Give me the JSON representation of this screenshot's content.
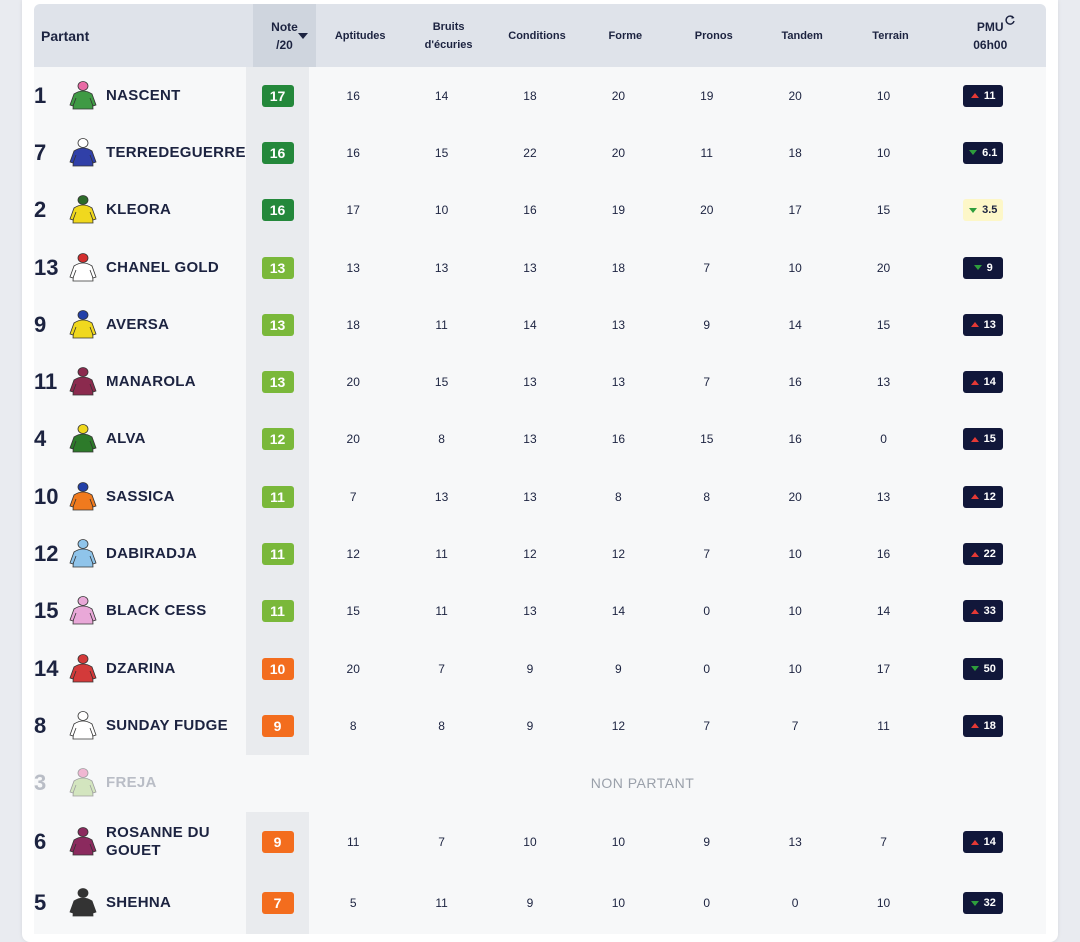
{
  "header": {
    "partant": "Partant",
    "note_line1": "Note",
    "note_line2": "/20",
    "aptitudes": "Aptitudes",
    "bruits_line1": "Bruits",
    "bruits_line2": "d'écuries",
    "conditions": "Conditions",
    "forme": "Forme",
    "pronos": "Pronos",
    "tandem": "Tandem",
    "terrain": "Terrain",
    "pmu_line1": "PMU",
    "pmu_line2": "06h00"
  },
  "colors": {
    "note_dark_green": "#24883b",
    "note_light_green": "#7ab83a",
    "note_orange": "#f36d1e",
    "odds_dark": "#11173a",
    "odds_light": "#fdf7c8"
  },
  "rows": [
    {
      "num": "1",
      "name": "NASCENT",
      "note": "17",
      "note_color": "#24883b",
      "aptitudes": "16",
      "bruits": "14",
      "conditions": "18",
      "forme": "20",
      "pronos": "19",
      "tandem": "20",
      "terrain": "10",
      "pmu": "11",
      "trend": "up",
      "jacket": "#3f9a44",
      "cap": "#e86aa5"
    },
    {
      "num": "7",
      "name": "TERREDEGUERRE",
      "note": "16",
      "note_color": "#24883b",
      "aptitudes": "16",
      "bruits": "15",
      "conditions": "22",
      "forme": "20",
      "pronos": "11",
      "tandem": "18",
      "terrain": "10",
      "pmu": "6.1",
      "trend": "down",
      "jacket": "#3040a8",
      "cap": "#ffffff"
    },
    {
      "num": "2",
      "name": "KLEORA",
      "note": "16",
      "note_color": "#24883b",
      "aptitudes": "17",
      "bruits": "10",
      "conditions": "16",
      "forme": "19",
      "pronos": "20",
      "tandem": "17",
      "terrain": "15",
      "pmu": "3.5",
      "trend": "down",
      "jacket": "#f0d81e",
      "cap": "#2d6b2a"
    },
    {
      "num": "13",
      "name": "CHANEL GOLD",
      "note": "13",
      "note_color": "#7ab83a",
      "aptitudes": "13",
      "bruits": "13",
      "conditions": "13",
      "forme": "18",
      "pronos": "7",
      "tandem": "10",
      "terrain": "20",
      "pmu": "9",
      "trend": "down",
      "jacket": "#ffffff",
      "cap": "#d32f2f"
    },
    {
      "num": "9",
      "name": "AVERSA",
      "note": "13",
      "note_color": "#7ab83a",
      "aptitudes": "18",
      "bruits": "11",
      "conditions": "14",
      "forme": "13",
      "pronos": "9",
      "tandem": "14",
      "terrain": "15",
      "pmu": "13",
      "trend": "up",
      "jacket": "#f0d81e",
      "cap": "#2340a8"
    },
    {
      "num": "11",
      "name": "MANAROLA",
      "note": "13",
      "note_color": "#7ab83a",
      "aptitudes": "20",
      "bruits": "15",
      "conditions": "13",
      "forme": "13",
      "pronos": "7",
      "tandem": "16",
      "terrain": "13",
      "pmu": "14",
      "trend": "up",
      "jacket": "#8b2a4e",
      "cap": "#8b2a4e"
    },
    {
      "num": "4",
      "name": "ALVA",
      "note": "12",
      "note_color": "#7ab83a",
      "aptitudes": "20",
      "bruits": "8",
      "conditions": "13",
      "forme": "16",
      "pronos": "15",
      "tandem": "16",
      "terrain": "0",
      "pmu": "15",
      "trend": "up",
      "jacket": "#2d7a2a",
      "cap": "#f0d81e"
    },
    {
      "num": "10",
      "name": "SASSICA",
      "note": "11",
      "note_color": "#7ab83a",
      "aptitudes": "7",
      "bruits": "13",
      "conditions": "13",
      "forme": "8",
      "pronos": "8",
      "tandem": "20",
      "terrain": "13",
      "pmu": "12",
      "trend": "up",
      "jacket": "#f07a1e",
      "cap": "#2340a8"
    },
    {
      "num": "12",
      "name": "DABIRADJA",
      "note": "11",
      "note_color": "#7ab83a",
      "aptitudes": "12",
      "bruits": "11",
      "conditions": "12",
      "forme": "12",
      "pronos": "7",
      "tandem": "10",
      "terrain": "16",
      "pmu": "22",
      "trend": "up",
      "jacket": "#8fc4ea",
      "cap": "#8fc4ea"
    },
    {
      "num": "15",
      "name": "BLACK CESS",
      "note": "11",
      "note_color": "#7ab83a",
      "aptitudes": "15",
      "bruits": "11",
      "conditions": "13",
      "forme": "14",
      "pronos": "0",
      "tandem": "10",
      "terrain": "14",
      "pmu": "33",
      "trend": "up",
      "jacket": "#e9a8d8",
      "cap": "#e9a8d8"
    },
    {
      "num": "14",
      "name": "DZARINA",
      "note": "10",
      "note_color": "#f36d1e",
      "aptitudes": "20",
      "bruits": "7",
      "conditions": "9",
      "forme": "9",
      "pronos": "0",
      "tandem": "10",
      "terrain": "17",
      "pmu": "50",
      "trend": "down",
      "jacket": "#d33a3a",
      "cap": "#d33a3a"
    },
    {
      "num": "8",
      "name": "SUNDAY FUDGE",
      "note": "9",
      "note_color": "#f36d1e",
      "aptitudes": "8",
      "bruits": "8",
      "conditions": "9",
      "forme": "12",
      "pronos": "7",
      "tandem": "7",
      "terrain": "11",
      "pmu": "18",
      "trend": "up",
      "jacket": "#ffffff",
      "cap": "#ffffff"
    }
  ],
  "non_partant": {
    "num": "3",
    "name": "FREJA",
    "label": "NON PARTANT",
    "jacket": "#a9cf7b",
    "cap": "#e86aa5"
  },
  "rows_after": [
    {
      "num": "6",
      "name_line1": "ROSANNE DU",
      "name_line2": "GOUET",
      "note": "9",
      "note_color": "#f36d1e",
      "aptitudes": "11",
      "bruits": "7",
      "conditions": "10",
      "forme": "10",
      "pronos": "9",
      "tandem": "13",
      "terrain": "7",
      "pmu": "14",
      "trend": "up",
      "jacket": "#8b2a5e",
      "cap": "#8b2a5e"
    },
    {
      "num": "5",
      "name_line1": "SHEHNA",
      "name_line2": "",
      "note": "7",
      "note_color": "#f36d1e",
      "aptitudes": "5",
      "bruits": "11",
      "conditions": "9",
      "forme": "10",
      "pronos": "0",
      "tandem": "0",
      "terrain": "10",
      "pmu": "32",
      "trend": "down",
      "jacket": "#333333",
      "cap": "#333333"
    }
  ]
}
